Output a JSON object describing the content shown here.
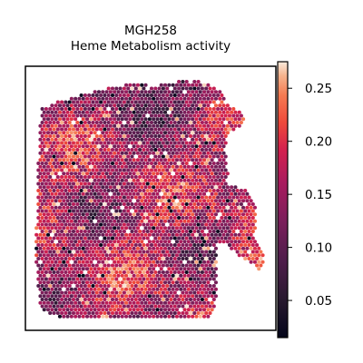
{
  "chart_data": {
    "type": "heatmap",
    "title_lines": [
      "MGH258",
      "Heme Metabolism activity"
    ],
    "xlabel": "",
    "ylabel": "",
    "colormap": "rocket",
    "colorbar": {
      "range": [
        0.015,
        0.275
      ],
      "ticks": [
        0.05,
        0.1,
        0.15,
        0.2,
        0.25
      ],
      "tick_labels": [
        "0.05",
        "0.10",
        "0.15",
        "0.20",
        "0.25"
      ]
    },
    "grid": false,
    "axes_ticks": false
  }
}
